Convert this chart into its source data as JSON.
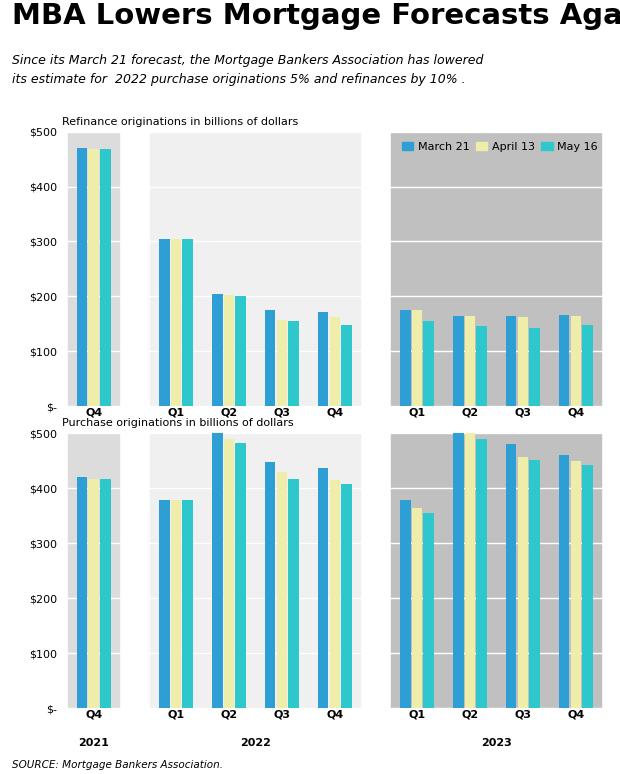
{
  "title": "MBA Lowers Mortgage Forecasts Again",
  "subtitle": "Since its March 21 forecast, the Mortgage Bankers Association has lowered\nits estimate for  2022 purchase originations 5% and refinances by 10% .",
  "source": "SOURCE: Mortgage Bankers Association.",
  "colors": {
    "march21": "#2E9FD4",
    "april13": "#EEEEAA",
    "may16": "#2EC8CC"
  },
  "legend_labels": [
    "March 21",
    "April 13",
    "May 16"
  ],
  "refi": {
    "title": "Refinance originations in billions of dollars",
    "march21": [
      470,
      305,
      205,
      175,
      172,
      175,
      165,
      165,
      167
    ],
    "april13": [
      468,
      305,
      202,
      158,
      162,
      175,
      165,
      162,
      165
    ],
    "may16": [
      468,
      305,
      200,
      155,
      148,
      155,
      147,
      143,
      148
    ],
    "ylim": [
      0,
      500
    ],
    "yticks": [
      0,
      100,
      200,
      300,
      400,
      500
    ]
  },
  "purchase": {
    "title": "Purchase originations in billions of dollars",
    "march21": [
      420,
      378,
      505,
      448,
      438,
      378,
      528,
      480,
      460
    ],
    "april13": [
      418,
      378,
      490,
      430,
      415,
      365,
      500,
      458,
      450
    ],
    "may16": [
      418,
      378,
      482,
      418,
      408,
      355,
      490,
      452,
      442
    ],
    "ylim": [
      0,
      500
    ],
    "yticks": [
      0,
      100,
      200,
      300,
      400,
      500
    ]
  },
  "bg_2021": "#DCDCDC",
  "bg_2022": "#F0F0F0",
  "bg_2023": "#C0C0C0",
  "bar_width": 0.22
}
